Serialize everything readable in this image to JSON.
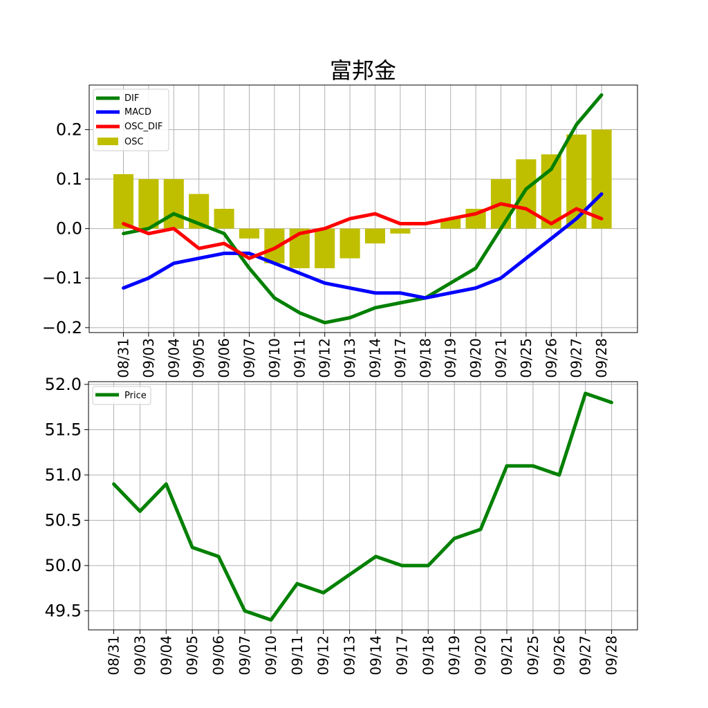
{
  "chart_data": [
    {
      "type": "line",
      "title": "富邦金",
      "categories": [
        "08/31",
        "09/03",
        "09/04",
        "09/05",
        "09/06",
        "09/07",
        "09/10",
        "09/11",
        "09/12",
        "09/13",
        "09/14",
        "09/17",
        "09/18",
        "09/19",
        "09/20",
        "09/21",
        "09/25",
        "09/26",
        "09/27",
        "09/28"
      ],
      "ylim": [
        -0.21,
        0.29
      ],
      "yticks": [
        -0.2,
        -0.1,
        0.0,
        0.1,
        0.2
      ],
      "ytick_labels": [
        "−0.2",
        "−0.1",
        "0.0",
        "0.1",
        "0.2"
      ],
      "grid": true,
      "legend_position": "top-left",
      "series": [
        {
          "name": "DIF",
          "kind": "line",
          "color": "#008000",
          "values": [
            -0.01,
            0.0,
            0.03,
            0.01,
            -0.01,
            -0.08,
            -0.14,
            -0.17,
            -0.19,
            -0.18,
            -0.16,
            -0.15,
            -0.14,
            -0.11,
            -0.08,
            0.0,
            0.08,
            0.12,
            0.21,
            0.27
          ]
        },
        {
          "name": "MACD",
          "kind": "line",
          "color": "#0000ff",
          "values": [
            -0.12,
            -0.1,
            -0.07,
            -0.06,
            -0.05,
            -0.05,
            -0.07,
            -0.09,
            -0.11,
            -0.12,
            -0.13,
            -0.13,
            -0.14,
            -0.13,
            -0.12,
            -0.1,
            -0.06,
            -0.02,
            0.02,
            0.07
          ]
        },
        {
          "name": "OSC_DIF",
          "kind": "line",
          "color": "#ff0000",
          "values": [
            0.01,
            -0.01,
            0.0,
            -0.04,
            -0.03,
            -0.06,
            -0.04,
            -0.01,
            0.0,
            0.02,
            0.03,
            0.01,
            0.01,
            0.02,
            0.03,
            0.05,
            0.04,
            0.01,
            0.04,
            0.02
          ]
        },
        {
          "name": "OSC",
          "kind": "bar",
          "color": "#bfbf00",
          "values": [
            0.11,
            0.1,
            0.1,
            0.07,
            0.04,
            -0.02,
            -0.07,
            -0.08,
            -0.08,
            -0.06,
            -0.03,
            -0.01,
            0.0,
            0.02,
            0.04,
            0.1,
            0.14,
            0.15,
            0.19,
            0.2
          ]
        }
      ]
    },
    {
      "type": "line",
      "categories": [
        "08/31",
        "09/03",
        "09/04",
        "09/05",
        "09/06",
        "09/07",
        "09/10",
        "09/11",
        "09/12",
        "09/13",
        "09/14",
        "09/17",
        "09/18",
        "09/19",
        "09/20",
        "09/21",
        "09/25",
        "09/26",
        "09/27",
        "09/28"
      ],
      "ylim": [
        49.29,
        52.03
      ],
      "yticks": [
        49.5,
        50.0,
        50.5,
        51.0,
        51.5,
        52.0
      ],
      "ytick_labels": [
        "49.5",
        "50.0",
        "50.5",
        "51.0",
        "51.5",
        "52.0"
      ],
      "grid": true,
      "legend_position": "top-left",
      "series": [
        {
          "name": "Price",
          "kind": "line",
          "color": "#008000",
          "values": [
            50.9,
            50.6,
            50.9,
            50.2,
            50.1,
            49.5,
            49.4,
            49.8,
            49.7,
            49.9,
            50.1,
            50.0,
            50.0,
            50.3,
            50.4,
            51.1,
            51.1,
            51.0,
            51.9,
            51.8
          ]
        }
      ]
    }
  ]
}
